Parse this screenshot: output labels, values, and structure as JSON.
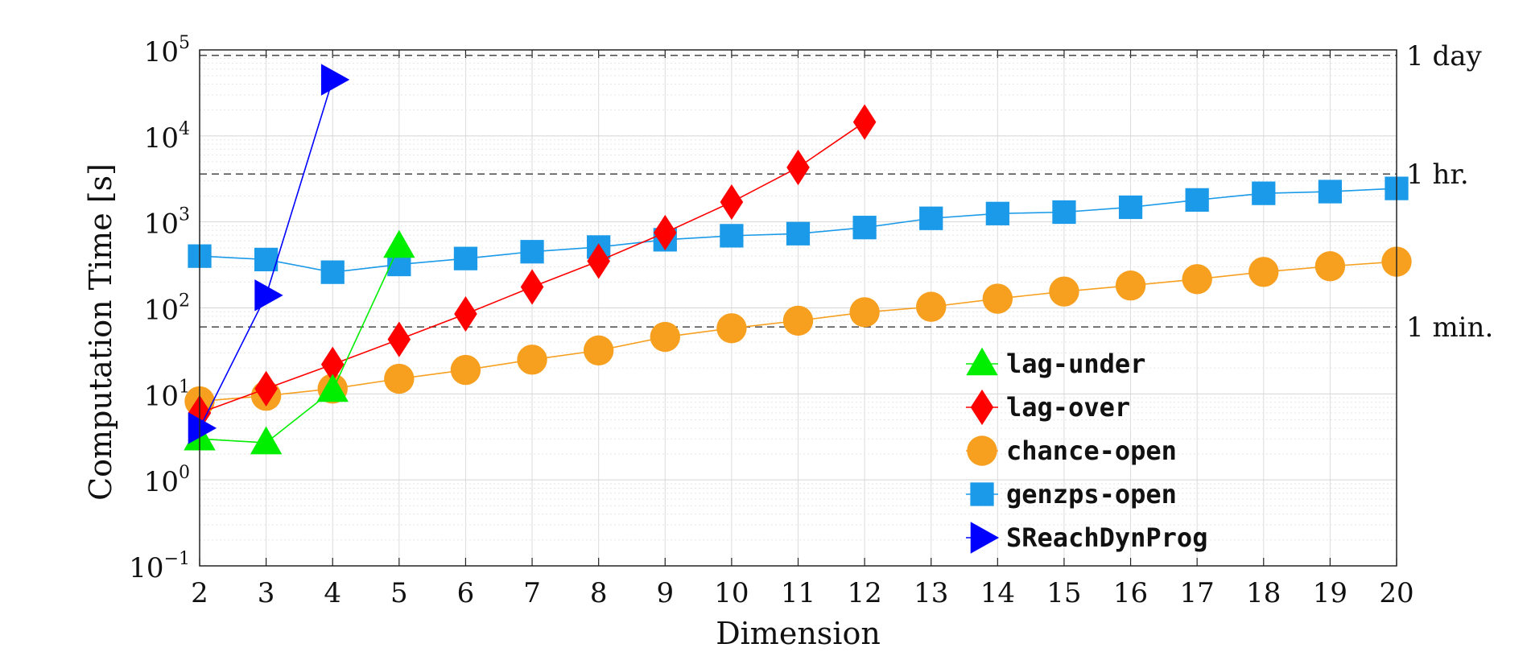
{
  "chart_data": {
    "type": "line",
    "xlabel": "Dimension",
    "ylabel": "Computation Time [s]",
    "xlim": [
      2,
      20
    ],
    "x_ticks": [
      2,
      3,
      4,
      5,
      6,
      7,
      8,
      9,
      10,
      11,
      12,
      13,
      14,
      15,
      16,
      17,
      18,
      19,
      20
    ],
    "y_scale": "log",
    "ylim": [
      0.1,
      100000
    ],
    "y_ticks": [
      {
        "base": "10",
        "exp": "5",
        "value": 100000
      },
      {
        "base": "10",
        "exp": "4",
        "value": 10000
      },
      {
        "base": "10",
        "exp": "3",
        "value": 1000
      },
      {
        "base": "10",
        "exp": "2",
        "value": 100
      },
      {
        "base": "10",
        "exp": "1",
        "value": 10
      },
      {
        "base": "10",
        "exp": "0",
        "value": 1
      },
      {
        "base": "10",
        "exp": "−1",
        "value": 0.1
      }
    ],
    "grid": true,
    "legend_position": "lower-right",
    "reference_lines": [
      {
        "label": "1 day",
        "value": 86400
      },
      {
        "label": "1 hr.",
        "value": 3600
      },
      {
        "label": "1 min.",
        "value": 60
      }
    ],
    "series": [
      {
        "name": "lag-under",
        "color": "#00ee00",
        "marker": "triangle-up",
        "x": [
          2,
          3,
          4,
          5
        ],
        "y": [
          3.0,
          2.7,
          11,
          520
        ]
      },
      {
        "name": "lag-over",
        "color": "#ff0000",
        "marker": "diamond",
        "x": [
          2,
          3,
          4,
          5,
          6,
          7,
          8,
          9,
          10,
          11,
          12
        ],
        "y": [
          6,
          11.5,
          22,
          43,
          85,
          175,
          350,
          750,
          1700,
          4300,
          14500
        ]
      },
      {
        "name": "chance-open",
        "color": "#f7a020",
        "marker": "circle",
        "x": [
          2,
          3,
          4,
          5,
          6,
          7,
          8,
          9,
          10,
          11,
          12,
          13,
          14,
          15,
          16,
          17,
          18,
          19,
          20
        ],
        "y": [
          8.2,
          9.5,
          11.5,
          15,
          19,
          25,
          32,
          46,
          58,
          71,
          89,
          103,
          128,
          155,
          182,
          216,
          262,
          305,
          345
        ]
      },
      {
        "name": "genzps-open",
        "color": "#1a9ae8",
        "marker": "square",
        "x": [
          2,
          3,
          4,
          5,
          6,
          7,
          8,
          9,
          10,
          11,
          12,
          13,
          14,
          15,
          16,
          17,
          18,
          19,
          20
        ],
        "y": [
          400,
          365,
          260,
          320,
          375,
          450,
          510,
          620,
          690,
          730,
          860,
          1100,
          1250,
          1300,
          1480,
          1800,
          2150,
          2250,
          2450
        ]
      },
      {
        "name": "SReachDynProg",
        "color": "#0000ff",
        "marker": "triangle-right",
        "x": [
          2,
          3,
          4
        ],
        "y": [
          4.0,
          140,
          45000
        ]
      }
    ]
  }
}
